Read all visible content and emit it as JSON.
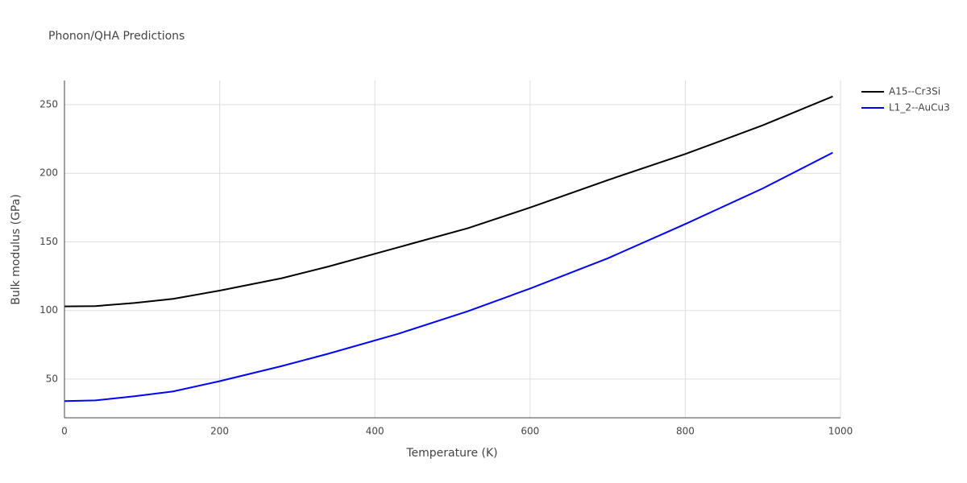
{
  "chart_data": {
    "type": "line",
    "title": "Phonon/QHA Predictions",
    "x_label": "Temperature (K)",
    "y_label": "Bulk modulus (GPa)",
    "x": [
      0,
      40,
      90,
      140,
      200,
      280,
      340,
      430,
      520,
      600,
      700,
      800,
      900,
      990
    ],
    "series": [
      {
        "name": "A15--Cr3Si",
        "color": "#000000",
        "values": [
          103,
          103.2,
          105.5,
          108.5,
          114.5,
          123.5,
          132,
          146,
          160,
          175,
          195,
          214,
          235,
          256
        ]
      },
      {
        "name": "L1_2--AuCu3",
        "color": "#0000ff",
        "values": [
          34,
          34.5,
          37.5,
          41,
          48.5,
          59.5,
          68.5,
          83,
          99.5,
          116,
          138,
          163,
          189,
          215
        ]
      }
    ],
    "xlim": [
      0,
      1000
    ],
    "xticks": [
      0,
      200,
      400,
      600,
      800,
      1000
    ],
    "ylim": [
      21.8,
      267.6
    ],
    "yticks": [
      50,
      100,
      150,
      200,
      250
    ],
    "grid": true,
    "legend": "outside-right"
  }
}
